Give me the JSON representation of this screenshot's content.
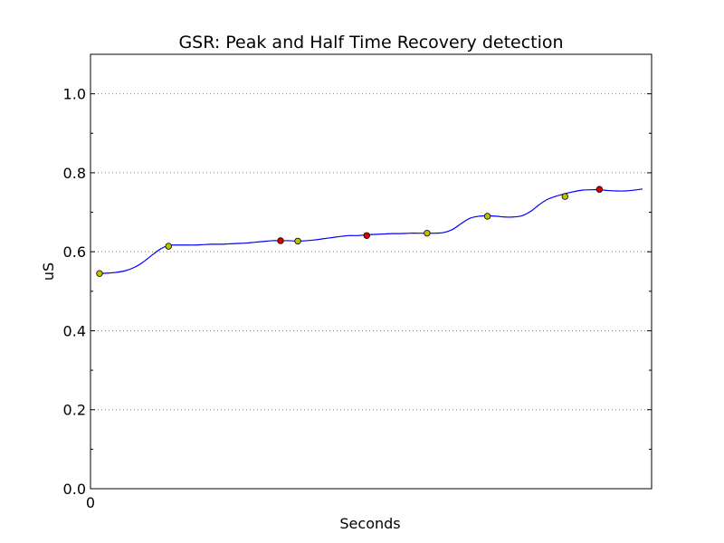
{
  "chart_data": {
    "type": "line",
    "title": "GSR: Peak and Half Time Recovery detection",
    "xlabel": "Seconds",
    "ylabel": "uS",
    "x_tick_labels": [
      "0"
    ],
    "ylim": [
      0.0,
      1.1
    ],
    "y_ticks": [
      0.0,
      0.2,
      0.4,
      0.6,
      0.8,
      1.0
    ],
    "y_tick_labels": [
      "0.0",
      "0.2",
      "0.4",
      "0.6",
      "0.8",
      "1.0"
    ],
    "grid": "horizontal dotted",
    "series": [
      {
        "color": "#0000ff",
        "values": [
          0.545,
          0.546,
          0.548,
          0.552,
          0.56,
          0.573,
          0.59,
          0.606,
          0.616,
          0.617,
          0.617,
          0.617,
          0.618,
          0.619,
          0.619,
          0.62,
          0.621,
          0.622,
          0.624,
          0.626,
          0.628,
          0.628,
          0.628,
          0.627,
          0.628,
          0.63,
          0.633,
          0.636,
          0.639,
          0.641,
          0.641,
          0.643,
          0.644,
          0.645,
          0.646,
          0.646,
          0.647,
          0.647,
          0.647,
          0.647,
          0.649,
          0.657,
          0.672,
          0.685,
          0.69,
          0.691,
          0.69,
          0.688,
          0.688,
          0.691,
          0.702,
          0.719,
          0.733,
          0.741,
          0.747,
          0.752,
          0.756,
          0.757,
          0.757,
          0.755,
          0.754,
          0.754,
          0.756,
          0.759
        ]
      }
    ],
    "markers": [
      {
        "kind": "half-time-recovery",
        "color": "#bfbf00",
        "index": 0,
        "value": 0.545
      },
      {
        "kind": "half-time-recovery",
        "color": "#bfbf00",
        "index": 8,
        "value": 0.614
      },
      {
        "kind": "peak",
        "color": "#dd0000",
        "index": 21,
        "value": 0.628
      },
      {
        "kind": "half-time-recovery",
        "color": "#bfbf00",
        "index": 23,
        "value": 0.627
      },
      {
        "kind": "peak",
        "color": "#dd0000",
        "index": 31,
        "value": 0.641
      },
      {
        "kind": "half-time-recovery",
        "color": "#bfbf00",
        "index": 38,
        "value": 0.647
      },
      {
        "kind": "half-time-recovery",
        "color": "#bfbf00",
        "index": 45,
        "value": 0.69
      },
      {
        "kind": "half-time-recovery",
        "color": "#bfbf00",
        "index": 54,
        "value": 0.74
      },
      {
        "kind": "peak",
        "color": "#dd0000",
        "index": 58,
        "value": 0.758
      }
    ]
  }
}
